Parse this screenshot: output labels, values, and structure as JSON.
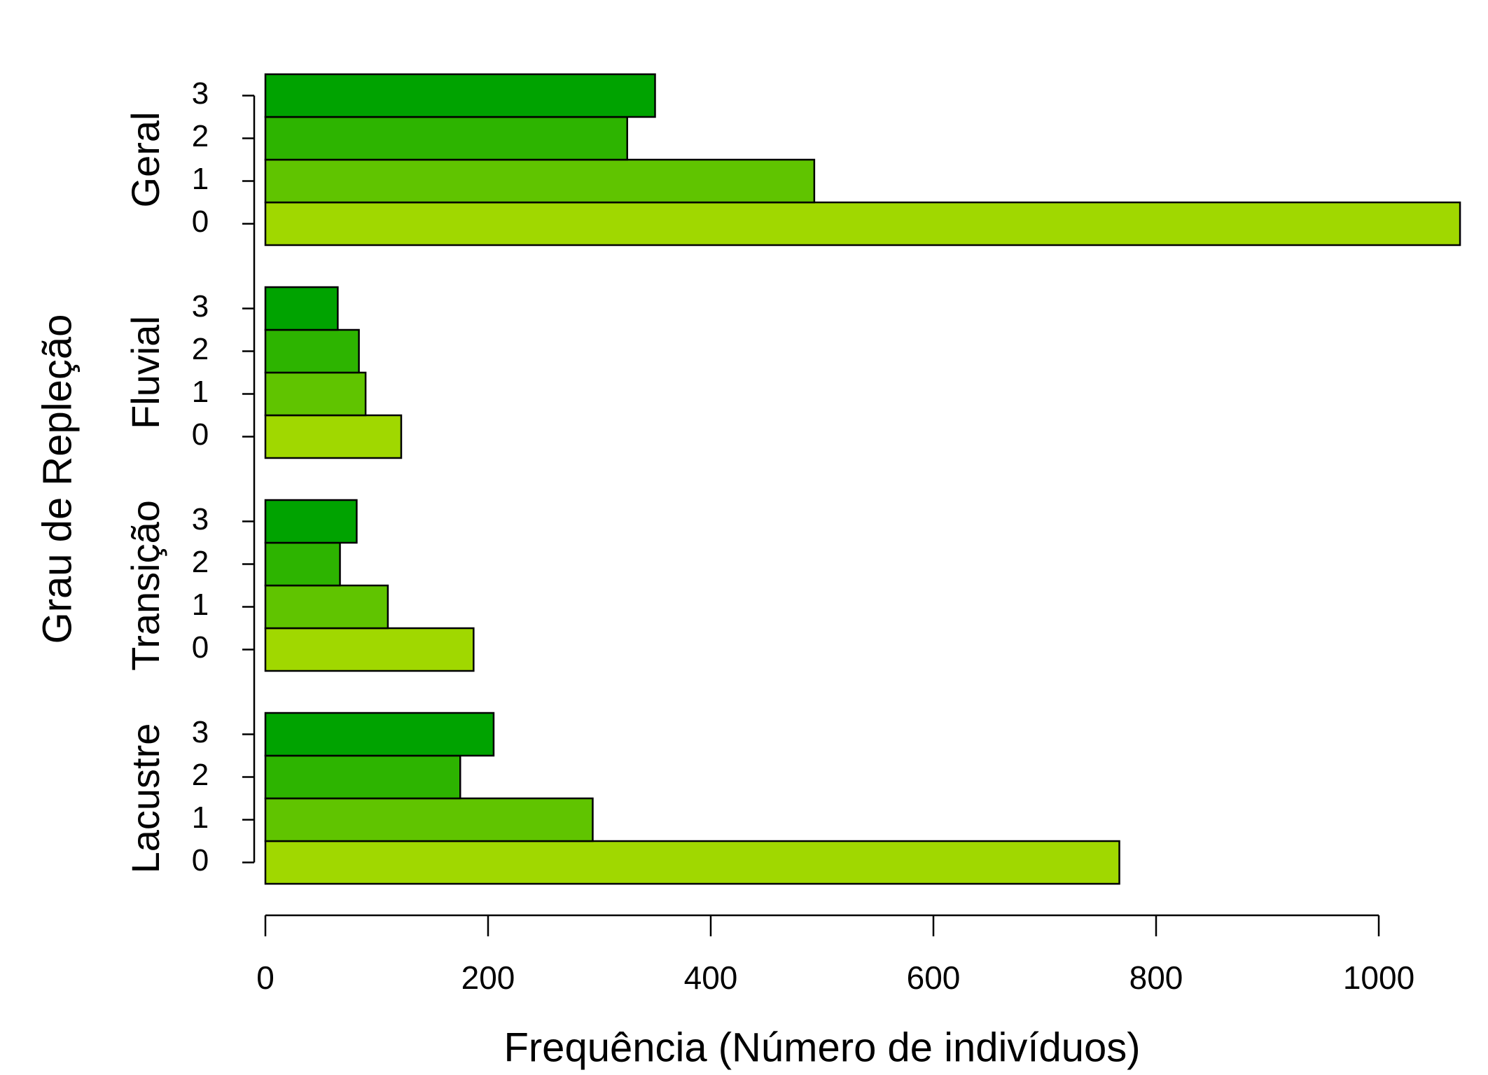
{
  "chart_data": {
    "type": "bar",
    "orientation": "horizontal",
    "y_label": "Grau de Repleção",
    "x_label": "Frequência (Número de indivíduos)",
    "categories": [
      "Lacustre",
      "Transição",
      "Fluvial",
      "Geral"
    ],
    "series": [
      {
        "name": "0",
        "color": "#a0d800",
        "values": [
          767,
          187,
          122,
          1073
        ]
      },
      {
        "name": "1",
        "color": "#60c400",
        "values": [
          294,
          110,
          90,
          493
        ]
      },
      {
        "name": "2",
        "color": "#2db400",
        "values": [
          175,
          67,
          84,
          325
        ]
      },
      {
        "name": "3",
        "color": "#00a300",
        "values": [
          205,
          82,
          65,
          350
        ]
      }
    ],
    "xlim": [
      0,
      1000
    ],
    "xticks": [
      0,
      200,
      400,
      600,
      800,
      1000
    ]
  }
}
